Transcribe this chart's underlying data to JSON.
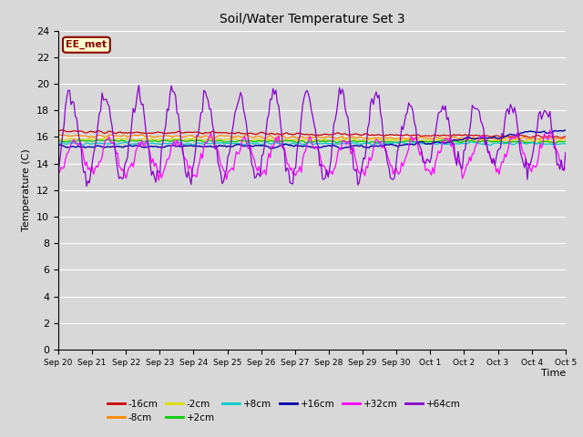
{
  "title": "Soil/Water Temperature Set 3",
  "xlabel": "Time",
  "ylabel": "Temperature (C)",
  "ylim": [
    0,
    24
  ],
  "yticks": [
    0,
    2,
    4,
    6,
    8,
    10,
    12,
    14,
    16,
    18,
    20,
    22,
    24
  ],
  "annotation": "EE_met",
  "bg_color": "#d8d8d8",
  "plot_bg": "#d8d8d8",
  "xtick_labels": [
    "Sep 20",
    "Sep 21",
    "Sep 22",
    "Sep 23",
    "Sep 24",
    "Sep 25",
    "Sep 26",
    "Sep 27",
    "Sep 28",
    "Sep 29",
    "Sep 30",
    "Oct 1",
    "Oct 2",
    "Oct 3",
    "Oct 4",
    "Oct 5"
  ],
  "grid_color": "#ffffff",
  "series_colors": {
    "-16cm": "#cc0000",
    "-8cm": "#ff8800",
    "-2cm": "#dddd00",
    "+2cm": "#00cc00",
    "+8cm": "#00cccc",
    "+16cm": "#0000aa",
    "+32cm": "#ff00ff",
    "+64cm": "#8800cc"
  },
  "legend_order": [
    "-16cm",
    "-8cm",
    "-2cm",
    "+2cm",
    "+8cm",
    "+16cm",
    "+32cm",
    "+64cm"
  ]
}
